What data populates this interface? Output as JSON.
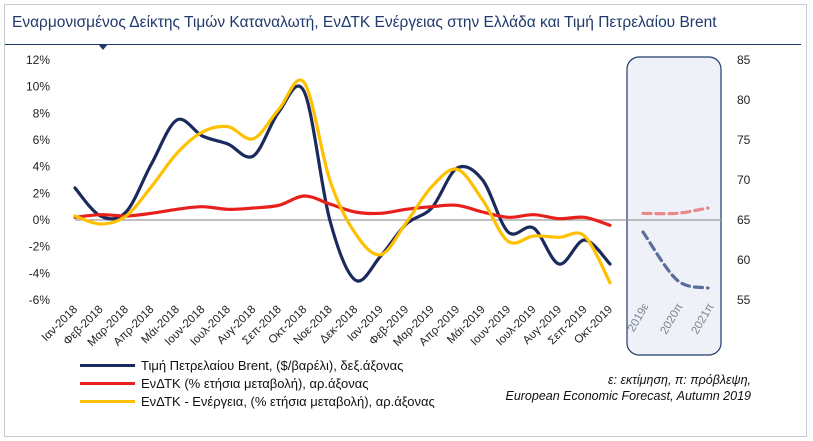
{
  "title": "Εναρμονισμένος Δείκτης Τιμών Καταναλωτή, ΕνΔΤΚ Ενέργειας στην Ελλάδα και Τιμή Πετρελαίου Brent",
  "chart_data": {
    "type": "line",
    "categories": [
      "Ιαν-2018",
      "Φεβ-2018",
      "Μαρ-2018",
      "Απρ-2018",
      "Μάι-2018",
      "Ιουν-2018",
      "Ιουλ-2018",
      "Αυγ-2018",
      "Σεπ-2018",
      "Οκτ-2018",
      "Νοε-2018",
      "Δεκ-2018",
      "Ιαν-2019",
      "Φεβ-2019",
      "Μαρ-2019",
      "Απρ-2019",
      "Μάι-2019",
      "Ιουν-2019",
      "Ιουλ-2019",
      "Αυγ-2019",
      "Σεπ-2019",
      "Οκτ-2019"
    ],
    "forecast_categories": [
      "2019ε",
      "2020π",
      "2021π"
    ],
    "left_axis": {
      "ylim": [
        -6,
        12
      ],
      "ticks": [
        "-6%",
        "-4%",
        "-2%",
        "0%",
        "2%",
        "4%",
        "6%",
        "8%",
        "10%",
        "12%"
      ],
      "tick_values": [
        -6,
        -4,
        -2,
        0,
        2,
        4,
        6,
        8,
        10,
        12
      ]
    },
    "right_axis": {
      "ylim": [
        55,
        85
      ],
      "ticks": [
        "55",
        "60",
        "65",
        "70",
        "75",
        "80",
        "85"
      ],
      "tick_values": [
        55,
        60,
        65,
        70,
        75,
        80,
        85
      ]
    },
    "series": [
      {
        "name": "Τιμή Πετρελαίου Brent, ($/βαρέλι), δεξ.άξονας",
        "axis": "right",
        "color": "#1b2a5c",
        "values": [
          69.0,
          65.5,
          66.0,
          72.0,
          77.5,
          75.5,
          74.5,
          73.0,
          78.5,
          81.0,
          65.0,
          57.5,
          60.5,
          64.5,
          66.5,
          71.5,
          70.0,
          63.5,
          64.0,
          59.5,
          62.5,
          59.5
        ],
        "forecast": [
          63.5,
          57.5,
          56.5
        ]
      },
      {
        "name": "ΕνΔΤΚ (% ετήσια μεταβολή), αρ.άξονας",
        "axis": "left",
        "color": "#e8201c",
        "values": [
          0.2,
          0.4,
          0.3,
          0.5,
          0.8,
          1.0,
          0.8,
          0.9,
          1.1,
          1.8,
          1.2,
          0.6,
          0.5,
          0.8,
          1.0,
          1.1,
          0.6,
          0.2,
          0.4,
          0.1,
          0.2,
          -0.4
        ],
        "forecast": [
          0.5,
          0.5,
          0.9
        ]
      },
      {
        "name": "ΕνΔΤΚ - Ενέργεια, (% ετήσια μεταβολή), αρ.άξονας",
        "axis": "left",
        "color": "#ffc000",
        "values": [
          0.3,
          -0.3,
          0.3,
          2.5,
          5.0,
          6.6,
          7.0,
          6.1,
          8.3,
          10.3,
          3.0,
          -1.0,
          -2.6,
          -0.2,
          2.5,
          3.8,
          1.5,
          -1.6,
          -1.2,
          -1.3,
          -1.2,
          -4.7
        ]
      }
    ],
    "forecast_series_colors": {
      "hicp": "#e88888",
      "brent": "#5a6e9a"
    }
  },
  "legend": {
    "brent": "Τιμή Πετρελαίου Brent, ($/βαρέλι),  δεξ.άξονας",
    "hicp": "ΕνΔΤΚ  (% ετήσια μεταβολή), αρ.άξονας",
    "energy": "ΕνΔΤΚ  - Ενέργεια,  (% ετήσια μεταβολή), αρ.άξονας"
  },
  "note": {
    "line1": "ε: εκτίμηση, π: πρόβλεψη,",
    "line2": "European Economic Forecast, Autumn 2019"
  }
}
